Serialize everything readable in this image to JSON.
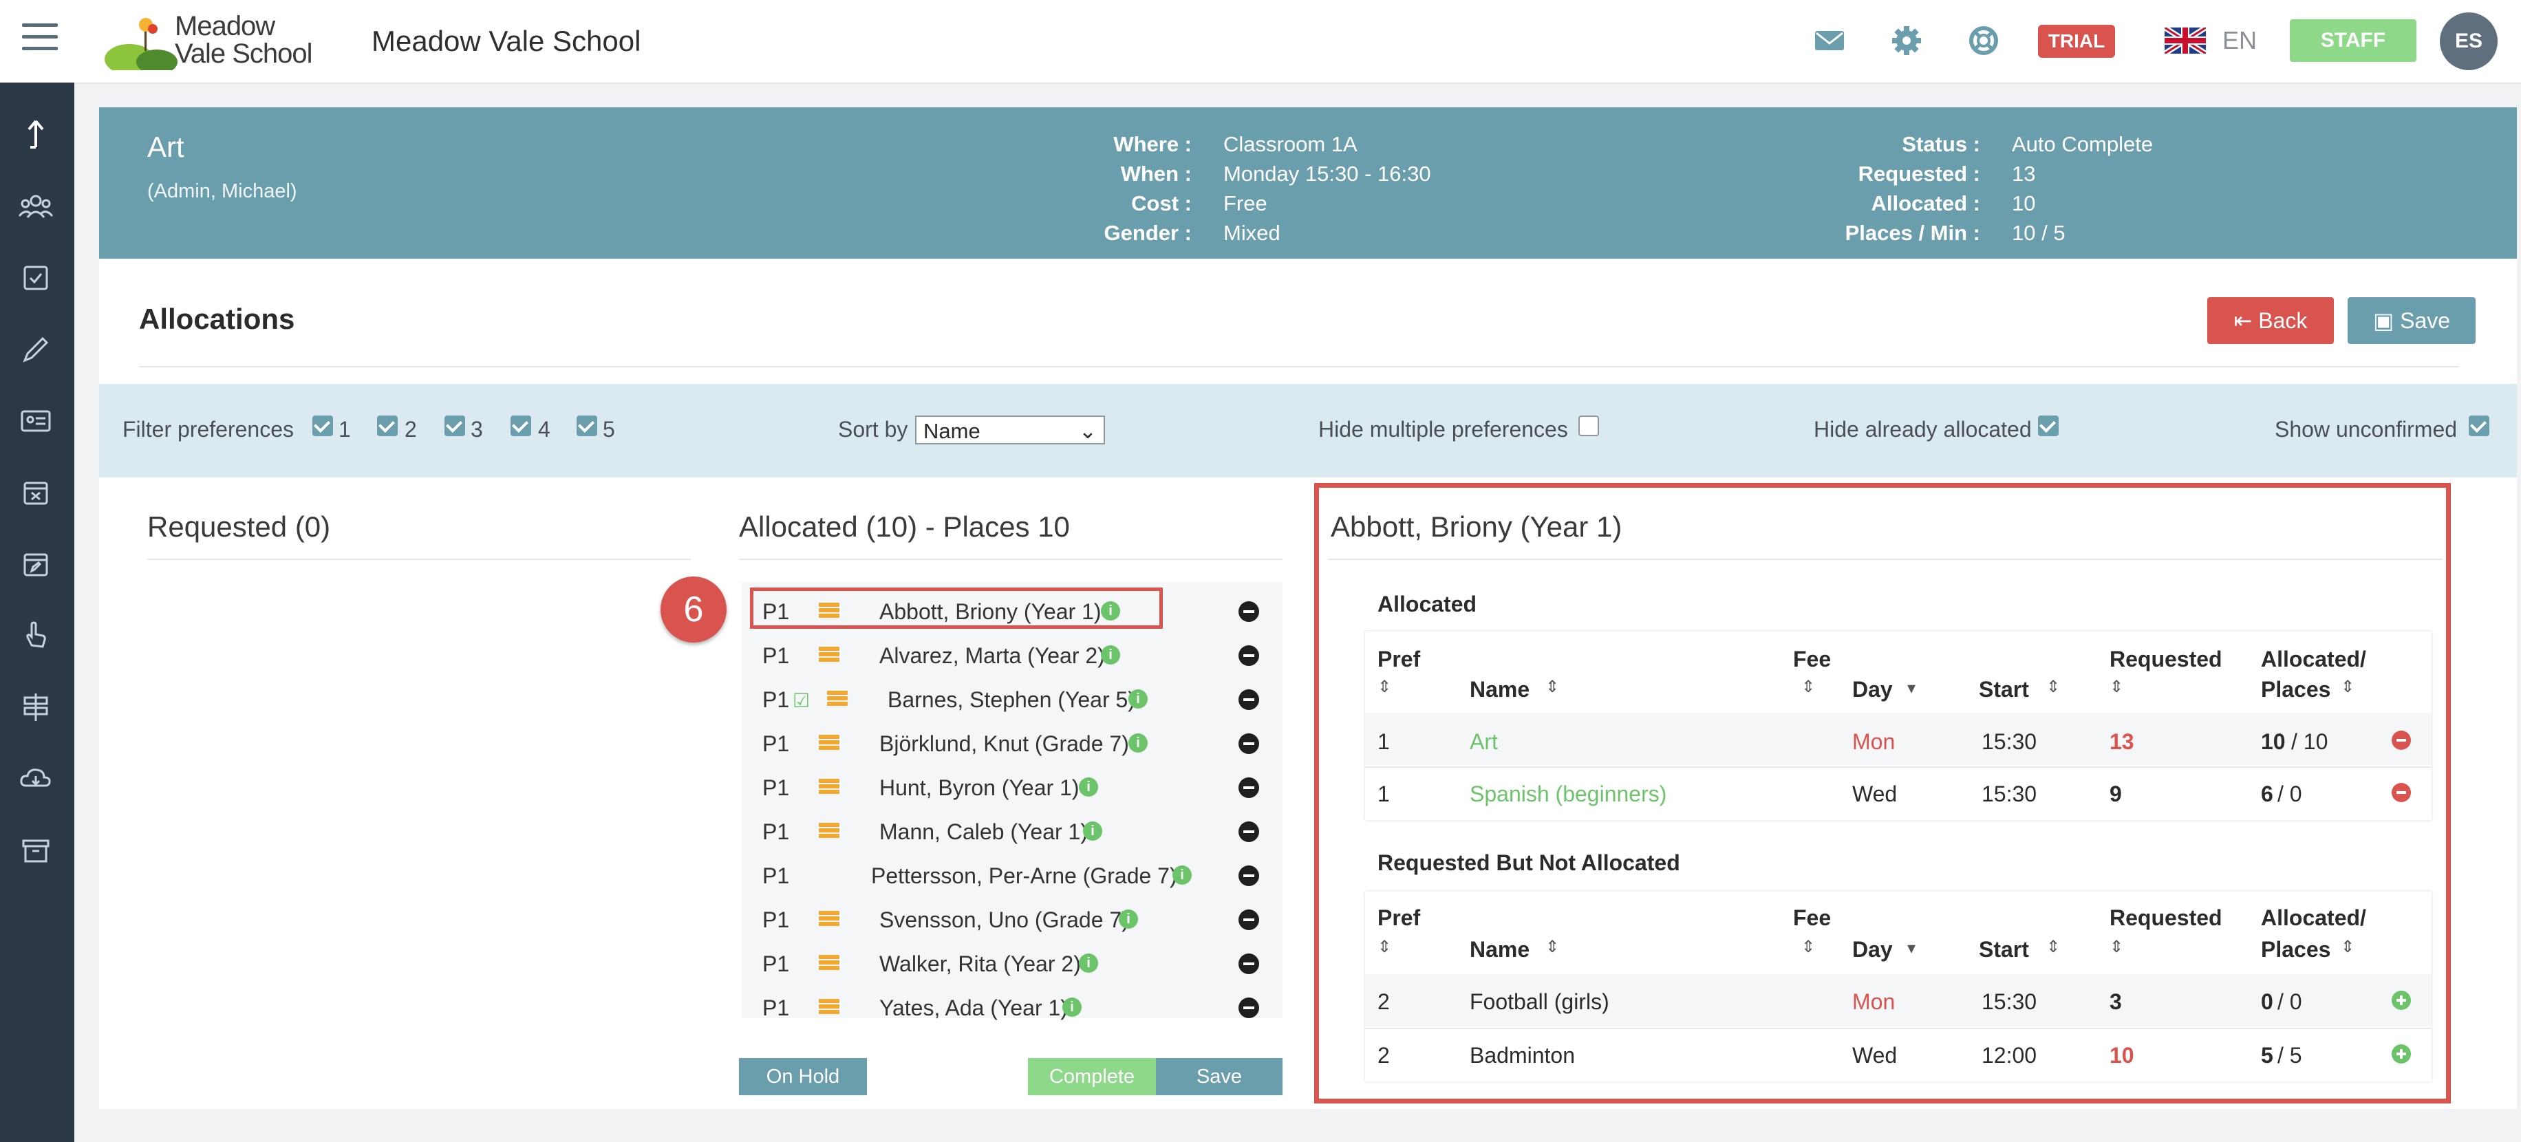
{
  "app": {
    "logo_text_line1": "Meadow",
    "logo_text_line2": "Vale School",
    "school_name": "Meadow Vale School",
    "trial_label": "TRIAL",
    "language": "EN",
    "staff_label": "STAFF",
    "user_initials": "ES"
  },
  "colors": {
    "header_teal": "#6a9eac",
    "danger": "#d9534f",
    "success": "#6cc46a",
    "sidebar": "#2c3846"
  },
  "sidebar_icons": [
    "upload-icon",
    "people-icon",
    "checklist-icon",
    "pencil-icon",
    "id-card-icon",
    "calendar-x-icon",
    "calendar-edit-icon",
    "hand-pointer-icon",
    "signpost-icon",
    "cloud-download-icon",
    "archive-icon"
  ],
  "activity": {
    "title": "Art",
    "subtitle": "(Admin, Michael)",
    "info_left": [
      {
        "label": "Where :",
        "value": "Classroom 1A"
      },
      {
        "label": "When :",
        "value": "Monday 15:30 - 16:30"
      },
      {
        "label": "Cost :",
        "value": "Free"
      },
      {
        "label": "Gender :",
        "value": "Mixed"
      }
    ],
    "info_right": [
      {
        "label": "Status :",
        "value": "Auto Complete"
      },
      {
        "label": "Requested :",
        "value": "13"
      },
      {
        "label": "Allocated :",
        "value": "10"
      },
      {
        "label": "Places / Min :",
        "value": "10 / 5"
      }
    ]
  },
  "allocations": {
    "title": "Allocations",
    "back_label": "Back",
    "save_label": "Save"
  },
  "filters": {
    "filter_label": "Filter preferences",
    "prefs": [
      "1",
      "2",
      "3",
      "4",
      "5"
    ],
    "sort_label": "Sort by",
    "sort_value": "Name",
    "hide_multiple_label": "Hide multiple preferences",
    "hide_multiple_checked": false,
    "hide_allocated_label": "Hide already allocated",
    "hide_allocated_checked": true,
    "show_unconfirmed_label": "Show unconfirmed",
    "show_unconfirmed_checked": true
  },
  "requested_column": {
    "title": "Requested (0)"
  },
  "allocated_column": {
    "title": "Allocated (10) - Places 10",
    "step_number": "6",
    "rows": [
      {
        "pref": "P1",
        "name": "Abbott, Briony (Year 1)"
      },
      {
        "pref": "P1",
        "name": "Alvarez, Marta (Year 2)"
      },
      {
        "pref": "P1",
        "name": "Barnes, Stephen (Year 5)"
      },
      {
        "pref": "P1",
        "name": "Björklund, Knut (Grade 7)"
      },
      {
        "pref": "P1",
        "name": "Hunt, Byron (Year 1)"
      },
      {
        "pref": "P1",
        "name": "Mann, Caleb (Year 1)"
      },
      {
        "pref": "P1",
        "name": "Pettersson, Per-Arne (Grade 7)"
      },
      {
        "pref": "P1",
        "name": "Svensson, Uno (Grade 7)"
      },
      {
        "pref": "P1",
        "name": "Walker, Rita (Year 2)"
      },
      {
        "pref": "P1",
        "name": "Yates, Ada (Year 1)"
      }
    ],
    "on_hold_label": "On Hold",
    "complete_label": "Complete",
    "save_label": "Save"
  },
  "detail": {
    "title": "Abbott, Briony (Year 1)",
    "allocated_label": "Allocated",
    "not_allocated_label": "Requested But Not Allocated",
    "headers": {
      "pref": "Pref",
      "name": "Name",
      "fee": "Fee",
      "day": "Day",
      "start": "Start",
      "requested": "Requested",
      "allocated_line1": "Allocated/",
      "allocated_line2": "Places"
    },
    "allocated_rows": [
      {
        "pref": "1",
        "name": "Art",
        "fee": "",
        "day": "Mon",
        "start": "15:30",
        "requested": "13",
        "allocated": "10",
        "places": "/ 10"
      },
      {
        "pref": "1",
        "name": "Spanish (beginners)",
        "fee": "",
        "day": "Wed",
        "start": "15:30",
        "requested": "9",
        "allocated": "6",
        "places": "/ 0"
      }
    ],
    "not_allocated_rows": [
      {
        "pref": "2",
        "name": "Football (girls)",
        "fee": "",
        "day": "Mon",
        "start": "15:30",
        "requested": "3",
        "allocated": "0",
        "places": "/ 0"
      },
      {
        "pref": "2",
        "name": "Badminton",
        "fee": "",
        "day": "Wed",
        "start": "12:00",
        "requested": "10",
        "allocated": "5",
        "places": "/ 5"
      }
    ]
  }
}
